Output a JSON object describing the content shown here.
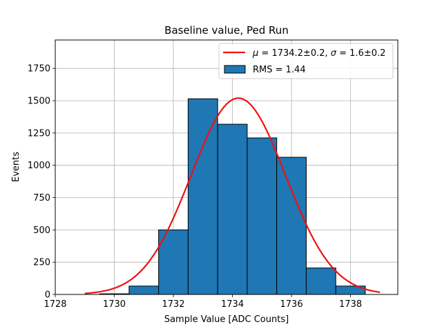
{
  "chart_data": {
    "type": "bar",
    "subtype": "histogram_with_gaussian_fit",
    "title": "Baseline value, Ped Run",
    "xlabel": "Sample Value [ADC Counts]",
    "ylabel": "Events",
    "xlim": [
      1728,
      1739.6
    ],
    "ylim": [
      0,
      1970
    ],
    "xticks": [
      1728,
      1730,
      1732,
      1734,
      1736,
      1738
    ],
    "yticks": [
      0,
      250,
      500,
      750,
      1000,
      1250,
      1500,
      1750
    ],
    "grid": true,
    "legend_position": "top-right",
    "bins": [
      {
        "x0": 1728.5,
        "x1": 1729.5,
        "value": 0
      },
      {
        "x0": 1729.5,
        "x1": 1730.5,
        "value": 5
      },
      {
        "x0": 1730.5,
        "x1": 1731.5,
        "value": 65
      },
      {
        "x0": 1731.5,
        "x1": 1732.5,
        "value": 500
      },
      {
        "x0": 1732.5,
        "x1": 1733.5,
        "value": 1515
      },
      {
        "x0": 1733.5,
        "x1": 1734.5,
        "value": 1318
      },
      {
        "x0": 1734.5,
        "x1": 1735.5,
        "value": 1212
      },
      {
        "x0": 1735.5,
        "x1": 1736.5,
        "value": 1062
      },
      {
        "x0": 1736.5,
        "x1": 1737.5,
        "value": 205
      },
      {
        "x0": 1737.5,
        "x1": 1738.5,
        "value": 65
      }
    ],
    "fit": {
      "mu": 1734.2,
      "sigma": 1.6,
      "amplitude": 1520,
      "x_range": [
        1729,
        1739
      ]
    },
    "legend": [
      {
        "type": "line",
        "label": "μ = 1734.2±0.2, σ = 1.6±0.2",
        "color": "#ee1111"
      },
      {
        "type": "patch",
        "label": "RMS = 1.44",
        "color": "#1f77b4"
      }
    ],
    "colors": {
      "bar_fill": "#1f77b4",
      "bar_edge": "#000000",
      "fit_line": "#ee1111",
      "grid": "#b0b0b0"
    }
  },
  "legend_text": {
    "fit_mu_symbol": "μ",
    "fit_mu_value": " = 1734.2±0.2, ",
    "fit_sigma_symbol": "σ",
    "fit_sigma_value": " = 1.6±0.2",
    "rms": "RMS = 1.44"
  }
}
